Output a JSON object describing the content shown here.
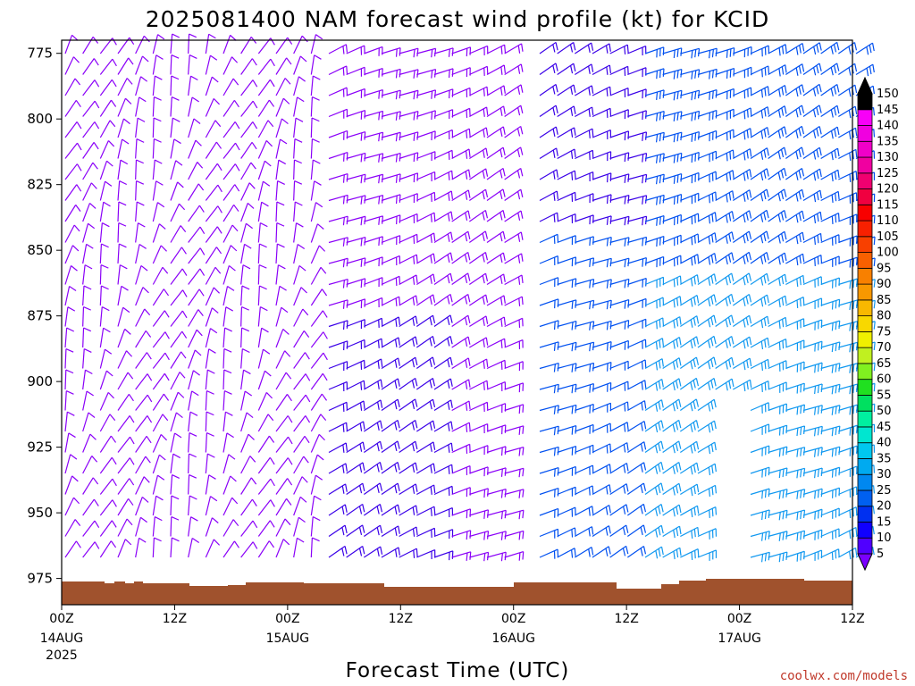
{
  "chart_data": {
    "type": "wind-barb-profile",
    "title": "2025081400 NAM forecast wind profile (kt) for KCID",
    "xlabel": "Forecast Time (UTC)",
    "ylim": [
      985,
      770
    ],
    "xlim_hours": [
      0,
      84
    ],
    "y_ticks": [
      "775",
      "800",
      "825",
      "850",
      "875",
      "900",
      "925",
      "950",
      "975"
    ],
    "x_ticks": [
      {
        "hour": 0,
        "label": "00Z",
        "date": "14AUG",
        "year": "2025"
      },
      {
        "hour": 12,
        "label": "12Z",
        "date": "",
        "year": ""
      },
      {
        "hour": 24,
        "label": "00Z",
        "date": "15AUG",
        "year": ""
      },
      {
        "hour": 36,
        "label": "12Z",
        "date": "",
        "year": ""
      },
      {
        "hour": 48,
        "label": "00Z",
        "date": "16AUG",
        "year": ""
      },
      {
        "hour": 60,
        "label": "12Z",
        "date": "",
        "year": ""
      },
      {
        "hour": 72,
        "label": "00Z",
        "date": "17AUG",
        "year": ""
      },
      {
        "hour": 84,
        "label": "12Z",
        "date": "",
        "year": ""
      }
    ],
    "colorbar": {
      "unit": "kt",
      "levels": [
        "5",
        "10",
        "15",
        "20",
        "25",
        "30",
        "35",
        "40",
        "45",
        "50",
        "55",
        "60",
        "65",
        "70",
        "75",
        "80",
        "85",
        "90",
        "95",
        "100",
        "105",
        "110",
        "115",
        "120",
        "125",
        "130",
        "135",
        "140",
        "145",
        "150"
      ],
      "colors": [
        "#7a00ff",
        "#5000ff",
        "#1000ff",
        "#0030f0",
        "#0060f0",
        "#0088f0",
        "#00aaf0",
        "#00c8f0",
        "#00e6d0",
        "#00f0a0",
        "#00e060",
        "#20e020",
        "#80f020",
        "#c0f020",
        "#f0f000",
        "#f8d800",
        "#f8b800",
        "#f89800",
        "#f88000",
        "#f86000",
        "#f84000",
        "#f82000",
        "#f80000",
        "#f00040",
        "#f00070",
        "#f000a0",
        "#f000c8",
        "#f000e0",
        "#f800f8",
        "#000000"
      ]
    },
    "ground_color": "#a0522d",
    "barb_colors": {
      "light": "#8a00f8",
      "moderate": "#3a00e8",
      "strong": "#0050f0",
      "strongest": "#1098f0"
    }
  },
  "credit": "coolwx.com/models"
}
